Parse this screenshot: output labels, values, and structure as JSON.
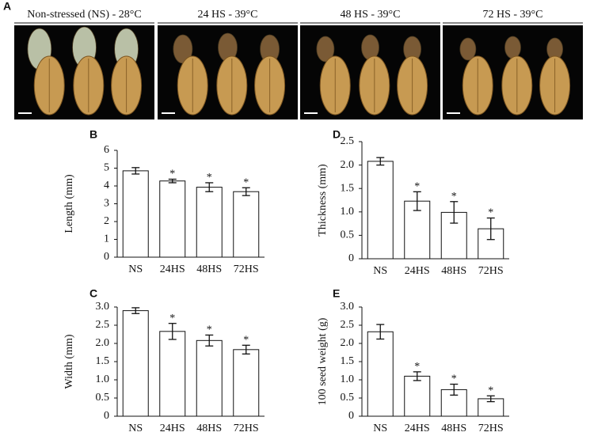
{
  "panel_a": {
    "label": "A",
    "headers": [
      "Non-stressed (NS) - 28°C",
      "24 HS - 39°C",
      "48 HS - 39°C",
      "72 HS - 39°C"
    ]
  },
  "chart_data": [
    {
      "type": "bar",
      "label": "B",
      "ylabel": "Length (mm)",
      "categories": [
        "NS",
        "24HS",
        "48HS",
        "72HS"
      ],
      "values": [
        4.85,
        4.28,
        3.93,
        3.68
      ],
      "errors": [
        0.18,
        0.1,
        0.25,
        0.22
      ],
      "color": "#ffffff",
      "ylim": [
        0,
        6
      ],
      "yticks": [
        0,
        1,
        2,
        3,
        4,
        5,
        6
      ],
      "annotations": [
        {
          "index": 1,
          "text": "*"
        },
        {
          "index": 2,
          "text": "*"
        },
        {
          "index": 3,
          "text": "*"
        }
      ]
    },
    {
      "type": "bar",
      "label": "C",
      "ylabel": "Width (mm)",
      "categories": [
        "NS",
        "24HS",
        "48HS",
        "72HS"
      ],
      "values": [
        2.9,
        2.33,
        2.08,
        1.83
      ],
      "errors": [
        0.08,
        0.22,
        0.15,
        0.12
      ],
      "color": "#ffffff",
      "ylim": [
        0,
        3
      ],
      "yticks": [
        0,
        0.5,
        {
          "value": 1,
          "label": "1.0"
        },
        1.5,
        {
          "value": 2,
          "label": "2.0"
        },
        2.5,
        {
          "value": 3,
          "label": "3.0"
        }
      ],
      "annotations": [
        {
          "index": 1,
          "text": "*"
        },
        {
          "index": 2,
          "text": "*"
        },
        {
          "index": 3,
          "text": "*"
        }
      ]
    },
    {
      "type": "bar",
      "label": "D",
      "ylabel": "Thickness (mm)",
      "categories": [
        "NS",
        "24HS",
        "48HS",
        "72HS"
      ],
      "values": [
        2.08,
        1.23,
        0.99,
        0.64
      ],
      "errors": [
        0.08,
        0.2,
        0.23,
        0.23
      ],
      "color": "#ffffff",
      "ylim": [
        0,
        2.5
      ],
      "yticks": [
        0,
        0.5,
        {
          "value": 1,
          "label": "1.0"
        },
        1.5,
        {
          "value": 2,
          "label": "2.0"
        },
        2.5
      ],
      "annotations": [
        {
          "index": 1,
          "text": "*"
        },
        {
          "index": 2,
          "text": "*"
        },
        {
          "index": 3,
          "text": "*"
        }
      ]
    },
    {
      "type": "bar",
      "label": "E",
      "ylabel": "100 seed weight (g)",
      "categories": [
        "NS",
        "24HS",
        "48HS",
        "72HS"
      ],
      "values": [
        2.32,
        1.1,
        0.73,
        0.48
      ],
      "errors": [
        0.2,
        0.12,
        0.15,
        0.08
      ],
      "color": "#ffffff",
      "ylim": [
        0,
        3
      ],
      "yticks": [
        0,
        0.5,
        {
          "value": 1,
          "label": "1.0"
        },
        1.5,
        {
          "value": 2,
          "label": "2.0"
        },
        2.5,
        {
          "value": 3,
          "label": "3.0"
        }
      ],
      "annotations": [
        {
          "index": 1,
          "text": "*"
        },
        {
          "index": 2,
          "text": "*"
        },
        {
          "index": 3,
          "text": "*"
        }
      ]
    }
  ]
}
